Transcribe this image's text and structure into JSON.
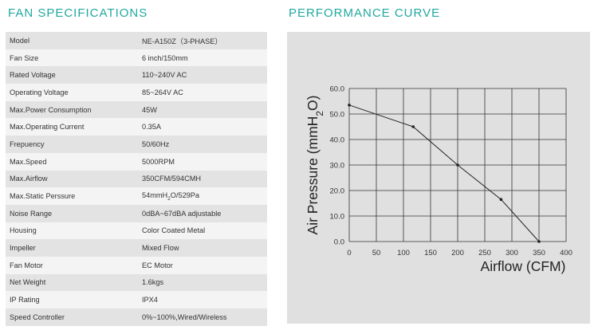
{
  "spec_heading": "FAN SPECIFICATIONS",
  "curve_heading": "PERFORMANCE CURVE",
  "specs": [
    {
      "key": "Model",
      "value": "NE-A150Z（3-PHASE）"
    },
    {
      "key": "Fan Size",
      "value": "6 inch/150mm"
    },
    {
      "key": "Rated Voltage",
      "value": "110~240V AC"
    },
    {
      "key": "Operating Voltage",
      "value": "85~264V AC"
    },
    {
      "key": "Max.Power Consumption",
      "value": "45W"
    },
    {
      "key": "Max.Operating Current",
      "value": "0.35A"
    },
    {
      "key": "Frepuency",
      "value": "50/60Hz"
    },
    {
      "key": "Max.Speed",
      "value": "5000RPM"
    },
    {
      "key": "Max.Airflow",
      "value": "350CFM/594CMH"
    },
    {
      "key": "Max.Static Perssure",
      "value": "54mmH2O/529Pa"
    },
    {
      "key": "Noise Range",
      "value": "0dBA~67dBA adjustable"
    },
    {
      "key": "Housing",
      "value": "Color Coated Metal"
    },
    {
      "key": "Impeller",
      "value": "Mixed Flow"
    },
    {
      "key": "Fan Motor",
      "value": "EC Motor"
    },
    {
      "key": "Net Weight",
      "value": "1.6kgs"
    },
    {
      "key": "IP Rating",
      "value": "IPX4"
    },
    {
      "key": "Speed Controller",
      "value": "0%~100%,Wired/Wireless"
    }
  ],
  "chart_data": {
    "type": "line",
    "title": "PERFORMANCE CURVE",
    "xlabel": "Airflow (CFM)",
    "ylabel": "Air Pressure (mmH2O)",
    "xlim": [
      0,
      400
    ],
    "ylim": [
      0,
      60
    ],
    "xticks": [
      "0",
      "50",
      "100",
      "150",
      "200",
      "250",
      "300",
      "350",
      "400"
    ],
    "yticks": [
      "0.0",
      "10.0",
      "20.0",
      "30.0",
      "40.0",
      "50.0",
      "60.0"
    ],
    "grid": true,
    "series": [
      {
        "values": [
          [
            0,
            53.5
          ],
          [
            118,
            45
          ],
          [
            200,
            30
          ],
          [
            280,
            16.5
          ],
          [
            350,
            0
          ]
        ]
      }
    ],
    "colors": {
      "line": "#222222",
      "grid": "#333333",
      "background": "#e0e0e0"
    }
  }
}
